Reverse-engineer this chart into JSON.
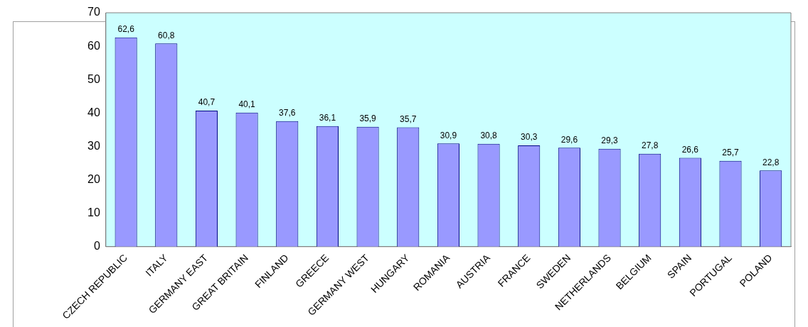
{
  "chart_data": {
    "type": "bar",
    "categories": [
      "CZECH REPUBLIC",
      "ITALY",
      "GERMANY EAST",
      "GREAT BRITAIN",
      "FINLAND",
      "GREECE",
      "GERMANY WEST",
      "HUNGARY",
      "ROMANIA",
      "AUSTRIA",
      "FRANCE",
      "SWEDEN",
      "NETHERLANDS",
      "BELGIUM",
      "SPAIN",
      "PORTUGAL",
      "POLAND"
    ],
    "values": [
      62.6,
      60.8,
      40.7,
      40.1,
      37.6,
      36.1,
      35.9,
      35.7,
      30.9,
      30.8,
      30.3,
      29.6,
      29.3,
      27.8,
      26.6,
      25.7,
      22.8
    ],
    "value_labels": [
      "62,6",
      "60,8",
      "40,7",
      "40,1",
      "37,6",
      "36,1",
      "35,9",
      "35,7",
      "30,9",
      "30,8",
      "30,3",
      "29,6",
      "29,3",
      "27,8",
      "26,6",
      "25,7",
      "22,8"
    ],
    "color": "#9999ff",
    "ylim": [
      0,
      70
    ],
    "yticks": [
      0,
      10,
      20,
      30,
      40,
      50,
      60,
      70
    ],
    "grid": false,
    "legend": false
  }
}
